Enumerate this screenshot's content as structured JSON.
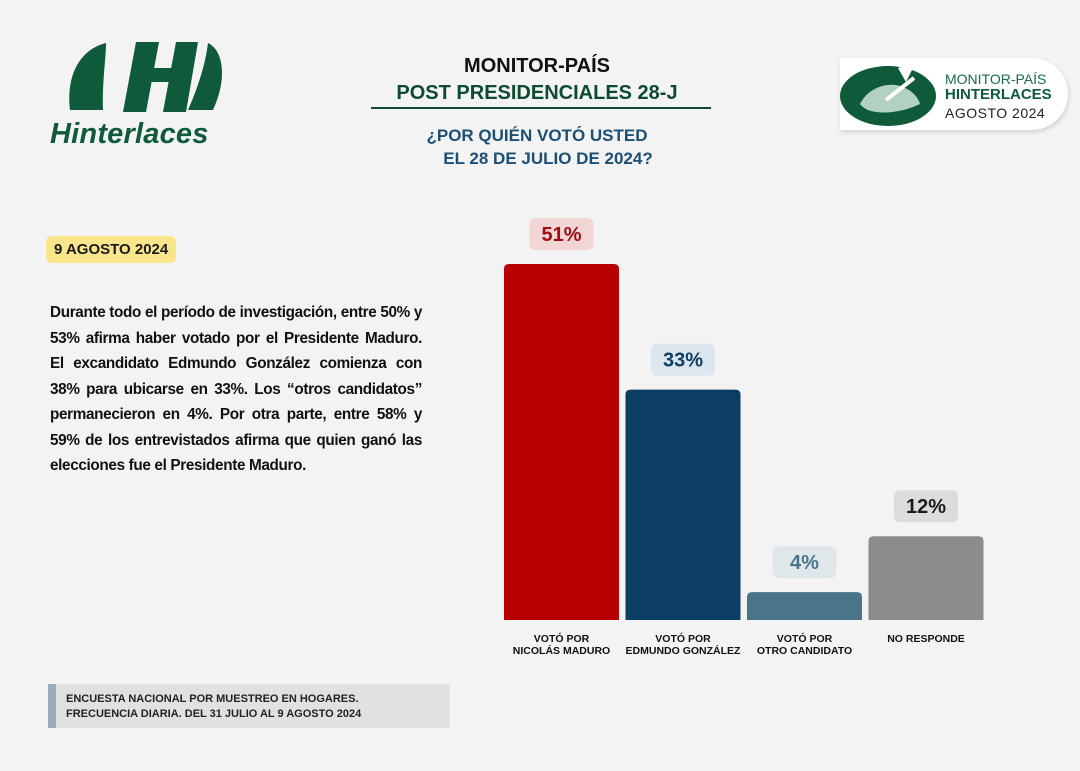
{
  "brand": {
    "name": "Hinterlaces",
    "badge_line1": "MONITOR-PAÍS",
    "badge_line2": "HINTERLACES",
    "badge_line3": "AGOSTO 2024"
  },
  "header": {
    "title_line1": "MONITOR-PAÍS",
    "title_line2": "POST PRESIDENCIALES 28-J",
    "question_line1": "¿POR QUIÉN VOTÓ USTED",
    "question_line2": "EL 28 DE JULIO DE 2024?"
  },
  "date_tag": "9 AGOSTO 2024",
  "paragraph": "Durante todo el período de investigación, entre 50% y 53% afirma haber votado por el Presidente Maduro. El excandidato Edmundo González comienza con 38% para ubicarse en 33%. Los “otros candidatos” permanecieron en 4%. Por otra parte, entre 58% y 59% de los entrevistados afirma que quien ganó las elecciones fue el Presidente Maduro.",
  "footer": {
    "line1": "ENCUESTA NACIONAL POR MUESTREO EN HOGARES.",
    "line2": "FRECUENCIA DIARIA. DEL 31 JULIO AL 9 AGOSTO 2024"
  },
  "colors": {
    "brand_green": "#0e5a3a",
    "question_blue": "#1d4e73"
  },
  "chart_data": {
    "type": "bar",
    "categories": [
      [
        "VOTÓ POR",
        "NICOLÁS MADURO"
      ],
      [
        "VOTÓ POR",
        "EDMUNDO GONZÁLEZ"
      ],
      [
        "VOTÓ POR",
        "OTRO CANDIDATO"
      ],
      [
        "NO RESPONDE"
      ]
    ],
    "values": [
      51,
      33,
      4,
      12
    ],
    "value_labels": [
      "51%",
      "33%",
      "4%",
      "12%"
    ],
    "bar_colors": [
      "#b80000",
      "#0b3e62",
      "#4a7589",
      "#8a8d8c"
    ],
    "label_bg_colors": [
      "#f2d6d6",
      "#dde6ee",
      "#dfe7ea",
      "#dcdcdc"
    ],
    "label_text_colors": [
      "#a10d12",
      "#0b3e62",
      "#4a7589",
      "#1a1a1a"
    ],
    "ylim": [
      0,
      51
    ],
    "grid": false,
    "legend": "none"
  }
}
